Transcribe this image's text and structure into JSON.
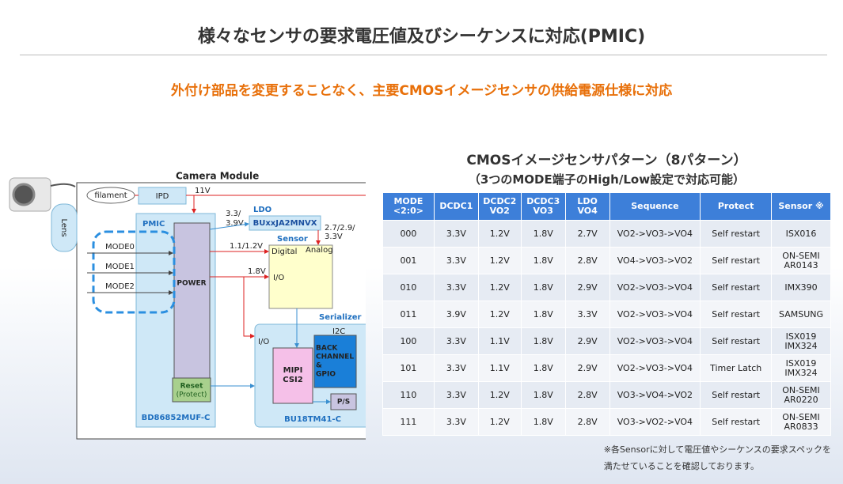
{
  "header": {
    "title": "様々なセンサの要求電圧値及びシーケンスに対応(PMIC)",
    "subtitle": "外付け部品を変更することなく、主要CMOSイメージセンサの供給電源仕様に対応"
  },
  "diagram": {
    "camera_module": "Camera Module",
    "lens": "Lens",
    "filament": "filament",
    "ipd": "IPD",
    "v11": "11V",
    "ldo": "LDO",
    "ldo_part": "BUxxJA2MNVX",
    "ldo_in": [
      "3.3/",
      "3.9V"
    ],
    "ldo_out": [
      "2.7/2.9/",
      "3.3V"
    ],
    "pmic": "PMIC",
    "modes": [
      "MODE0",
      "MODE1",
      "MODE2"
    ],
    "power": "POWER",
    "digital_v": "1.1/1.2V",
    "sensor": "Sensor",
    "digital": "Digital",
    "analog": "Analog",
    "io_v": "1.8V",
    "sensor_io": "I/O",
    "serializer": "Serializer",
    "i2c": "I2C",
    "ser_io": "I/O",
    "back_channel": [
      "BACK",
      "CHANNEL",
      "&",
      "GPIO"
    ],
    "mipi": [
      "MIPI",
      "CSI2"
    ],
    "ps": "P/S",
    "reset": [
      "Reset",
      "(Protect)"
    ],
    "pmic_part": "BD86852MUF-C",
    "ser_part": "BU18TM41-C"
  },
  "table": {
    "title": "CMOSイメージセンサパターン（8パターン）",
    "subtitle": "（3つのMODE端子のHigh/Low設定で対応可能）",
    "headers": [
      "MODE\n<2:0>",
      "DCDC1",
      "DCDC2\nVO2",
      "DCDC3\nVO3",
      "LDO\nVO4",
      "Sequence",
      "Protect",
      "Sensor ※"
    ],
    "rows": [
      [
        "000",
        "3.3V",
        "1.2V",
        "1.8V",
        "2.7V",
        "VO2->VO3->VO4",
        "Self restart",
        "ISX016"
      ],
      [
        "001",
        "3.3V",
        "1.2V",
        "1.8V",
        "2.8V",
        "VO4->VO3->VO2",
        "Self restart",
        "ON-SEMI\nAR0143"
      ],
      [
        "010",
        "3.3V",
        "1.2V",
        "1.8V",
        "2.9V",
        "VO2->VO3->VO4",
        "Self restart",
        "IMX390"
      ],
      [
        "011",
        "3.9V",
        "1.2V",
        "1.8V",
        "3.3V",
        "VO2->VO3->VO4",
        "Self restart",
        "SAMSUNG"
      ],
      [
        "100",
        "3.3V",
        "1.1V",
        "1.8V",
        "2.9V",
        "VO2->VO3->VO4",
        "Self restart",
        "ISX019\nIMX324"
      ],
      [
        "101",
        "3.3V",
        "1.1V",
        "1.8V",
        "2.9V",
        "VO2->VO3->VO4",
        "Timer Latch",
        "ISX019\nIMX324"
      ],
      [
        "110",
        "3.3V",
        "1.2V",
        "1.8V",
        "2.8V",
        "VO3->VO4->VO2",
        "Self restart",
        "ON-SEMI\nAR0220"
      ],
      [
        "111",
        "3.3V",
        "1.2V",
        "1.8V",
        "2.8V",
        "VO3->VO2->VO4",
        "Self restart",
        "ON-SEMI\nAR0833"
      ]
    ]
  },
  "footnote": [
    "※各Sensorに対して電圧値やシーケンスの要求スペックを",
    "満たせていることを確認しております。"
  ]
}
